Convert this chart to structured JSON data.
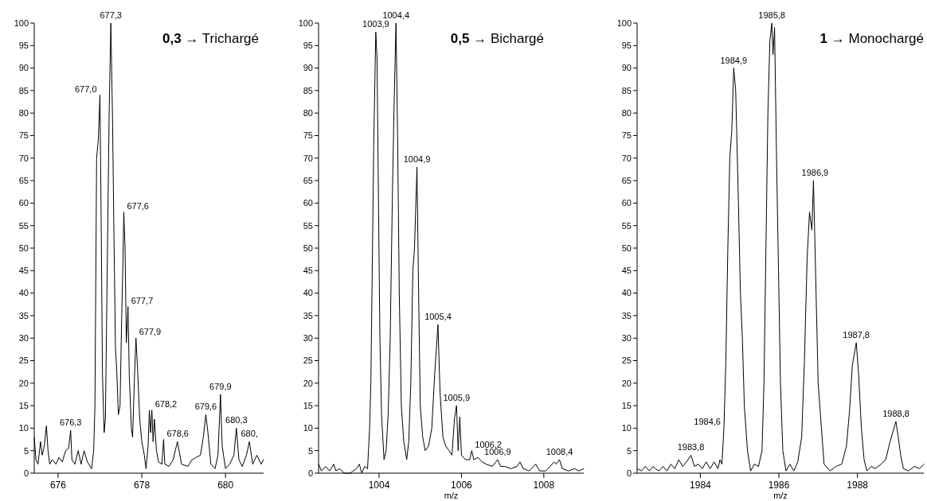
{
  "chart_data": [
    {
      "type": "line",
      "title": "0,3 → Trichargé",
      "color": "#000000",
      "x": [
        675.43,
        675.47,
        675.52,
        675.58,
        675.62,
        675.67,
        675.72,
        675.76,
        675.8,
        675.86,
        675.95,
        676.02,
        676.1,
        676.18,
        676.25,
        676.3,
        676.33,
        676.4,
        676.48,
        676.55,
        676.62,
        676.7,
        676.8,
        676.85,
        676.88,
        676.92,
        676.96,
        677.0,
        677.03,
        677.06,
        677.1,
        677.13,
        677.18,
        677.22,
        677.26,
        677.3,
        677.33,
        677.37,
        677.4,
        677.44,
        677.48,
        677.52,
        677.55,
        677.57,
        677.6,
        677.63,
        677.67,
        677.7,
        677.75,
        677.78,
        677.82,
        677.86,
        677.9,
        677.95,
        678.0,
        678.06,
        678.1,
        678.15,
        678.18,
        678.21,
        678.24,
        678.27,
        678.3,
        678.35,
        678.4,
        678.48,
        678.52,
        678.55,
        678.65,
        678.75,
        678.85,
        678.95,
        679.1,
        679.2,
        679.3,
        679.4,
        679.47,
        679.53,
        679.58,
        679.65,
        679.75,
        679.82,
        679.88,
        679.92,
        680.0,
        680.1,
        680.2,
        680.26,
        680.32,
        680.4,
        680.5,
        680.57,
        680.65,
        680.75,
        680.85,
        680.91
      ],
      "values": [
        8,
        3,
        2,
        7,
        4,
        6,
        10.5,
        5,
        2,
        3,
        2,
        3.5,
        2.5,
        5,
        5.5,
        9.5,
        3,
        2,
        5,
        2,
        5,
        2.5,
        1,
        5,
        15,
        70,
        74,
        84,
        55,
        22,
        9,
        12,
        50,
        80,
        100,
        79,
        56,
        28,
        23,
        13,
        15,
        35,
        47,
        58,
        50,
        29,
        37,
        22,
        10,
        8,
        20,
        30,
        23,
        12,
        7,
        4,
        1,
        6,
        14,
        9,
        14,
        7,
        12,
        5,
        2.5,
        2,
        7.5,
        2,
        1.5,
        3,
        7,
        2,
        1.5,
        3,
        3.5,
        4,
        8,
        13,
        9,
        2,
        1,
        4,
        17.5,
        6,
        1,
        2,
        4,
        10,
        3,
        1.5,
        4,
        7,
        2,
        4,
        2,
        3
      ],
      "xlim": [
        675.43,
        680.91
      ],
      "xticks": [
        676,
        678,
        680
      ],
      "ylim": [
        0,
        100
      ],
      "yticks": [
        0,
        5,
        10,
        15,
        20,
        25,
        30,
        35,
        40,
        45,
        50,
        55,
        60,
        65,
        70,
        75,
        80,
        85,
        90,
        95,
        100
      ],
      "annotations": [
        {
          "text": "676,3",
          "x": 676.3,
          "y": 9.5
        },
        {
          "text": "677,0",
          "x": 677.0,
          "y": 84
        },
        {
          "text": "677,3",
          "x": 677.26,
          "y": 100
        },
        {
          "text": "677,6",
          "x": 677.57,
          "y": 58
        },
        {
          "text": "677,7",
          "x": 677.67,
          "y": 37
        },
        {
          "text": "677,9",
          "x": 677.86,
          "y": 30
        },
        {
          "text": "678,2",
          "x": 678.24,
          "y": 14
        },
        {
          "text": "678,6",
          "x": 678.52,
          "y": 7.5
        },
        {
          "text": "679,6",
          "x": 679.53,
          "y": 13
        },
        {
          "text": "679,9",
          "x": 679.88,
          "y": 17.5
        },
        {
          "text": "680,3",
          "x": 680.26,
          "y": 10
        },
        {
          "text": "680,",
          "x": 680.57,
          "y": 7
        }
      ]
    },
    {
      "type": "line",
      "title": "0,5 → Bichargé",
      "xlabel": "m/z",
      "color": "#000000",
      "x": [
        1002.53,
        1002.6,
        1002.7,
        1002.8,
        1002.9,
        1002.95,
        1003.05,
        1003.15,
        1003.3,
        1003.45,
        1003.52,
        1003.58,
        1003.65,
        1003.72,
        1003.77,
        1003.8,
        1003.84,
        1003.87,
        1003.92,
        1003.95,
        1003.98,
        1004.02,
        1004.06,
        1004.12,
        1004.17,
        1004.22,
        1004.27,
        1004.32,
        1004.36,
        1004.41,
        1004.45,
        1004.49,
        1004.54,
        1004.6,
        1004.67,
        1004.72,
        1004.77,
        1004.82,
        1004.86,
        1004.92,
        1004.96,
        1005.0,
        1005.06,
        1005.12,
        1005.2,
        1005.28,
        1005.35,
        1005.43,
        1005.48,
        1005.55,
        1005.62,
        1005.7,
        1005.77,
        1005.83,
        1005.88,
        1005.92,
        1005.96,
        1006.0,
        1006.1,
        1006.2,
        1006.25,
        1006.3,
        1006.4,
        1006.5,
        1006.6,
        1006.75,
        1006.88,
        1006.95,
        1007.05,
        1007.2,
        1007.35,
        1007.42,
        1007.5,
        1007.65,
        1007.8,
        1007.9,
        1008.05,
        1008.25,
        1008.3,
        1008.38,
        1008.45,
        1008.6,
        1008.75,
        1008.85,
        1008.97
      ],
      "values": [
        2,
        0.5,
        1.5,
        0.5,
        2,
        0.5,
        1,
        0,
        0,
        1,
        2,
        0,
        1.5,
        1,
        10,
        20,
        50,
        73,
        98,
        92,
        65,
        30,
        13,
        3,
        5,
        13,
        30,
        60,
        80,
        100,
        75,
        40,
        15,
        7,
        3,
        7,
        20,
        45,
        50,
        68,
        40,
        15,
        8,
        5,
        6,
        10,
        22,
        33,
        18,
        8,
        6,
        5,
        4,
        12,
        15,
        5,
        12.5,
        4,
        3,
        3,
        5,
        3,
        3.5,
        2.5,
        2,
        1.5,
        3,
        1.5,
        1.5,
        1,
        1.5,
        2.5,
        1,
        0.5,
        2,
        0.5,
        0.5,
        2.5,
        2,
        3,
        1,
        0.5,
        1,
        0.5,
        1
      ],
      "xlim": [
        1002.53,
        1008.97
      ],
      "xticks": [
        1004,
        1006,
        1008
      ],
      "ylim": [
        0,
        100
      ],
      "yticks": [
        0,
        5,
        10,
        15,
        20,
        25,
        30,
        35,
        40,
        45,
        50,
        55,
        60,
        65,
        70,
        75,
        80,
        85,
        90,
        95,
        100
      ],
      "annotations": [
        {
          "text": "1003,9",
          "x": 1003.92,
          "y": 98
        },
        {
          "text": "1004,4",
          "x": 1004.41,
          "y": 100
        },
        {
          "text": "1004,9",
          "x": 1004.92,
          "y": 68
        },
        {
          "text": "1005,4",
          "x": 1005.43,
          "y": 33
        },
        {
          "text": "1005,9",
          "x": 1005.88,
          "y": 15
        },
        {
          "text": "1006,2",
          "x": 1006.25,
          "y": 5
        },
        {
          "text": "1006,9",
          "x": 1006.88,
          "y": 3
        },
        {
          "text": "1008,4",
          "x": 1008.38,
          "y": 3
        }
      ]
    },
    {
      "type": "line",
      "title": "1 → Monochargé",
      "xlabel": "m/z",
      "color": "#000000",
      "x": [
        1982.39,
        1982.5,
        1982.6,
        1982.7,
        1982.8,
        1982.85,
        1982.95,
        1983.05,
        1983.15,
        1983.25,
        1983.35,
        1983.45,
        1983.55,
        1983.65,
        1983.76,
        1983.85,
        1983.95,
        1984.05,
        1984.15,
        1984.25,
        1984.35,
        1984.45,
        1984.5,
        1984.55,
        1984.6,
        1984.65,
        1984.7,
        1984.75,
        1984.8,
        1984.85,
        1984.9,
        1984.97,
        1985.02,
        1985.07,
        1985.12,
        1985.2,
        1985.28,
        1985.38,
        1985.48,
        1985.57,
        1985.62,
        1985.67,
        1985.72,
        1985.77,
        1985.82,
        1985.85,
        1985.89,
        1985.94,
        1985.99,
        1986.04,
        1986.1,
        1986.18,
        1986.28,
        1986.38,
        1986.48,
        1986.58,
        1986.65,
        1986.72,
        1986.78,
        1986.84,
        1986.88,
        1986.92,
        1986.96,
        1987.0,
        1987.05,
        1987.15,
        1987.3,
        1987.45,
        1987.6,
        1987.72,
        1987.8,
        1987.87,
        1987.97,
        1988.03,
        1988.1,
        1988.17,
        1988.24,
        1988.35,
        1988.45,
        1988.6,
        1988.72,
        1988.83,
        1988.98,
        1989.04,
        1989.1,
        1989.17,
        1989.3,
        1989.45,
        1989.58,
        1989.69
      ],
      "values": [
        1,
        0.5,
        1.5,
        0.5,
        1.5,
        1,
        0.5,
        1.5,
        0.5,
        2,
        1,
        3,
        1.5,
        2.5,
        4,
        1.5,
        2,
        1,
        2.5,
        1,
        2.5,
        1,
        3,
        2,
        10,
        25,
        50,
        70,
        76,
        90,
        85,
        60,
        40,
        30,
        15,
        5,
        0.5,
        2,
        1.5,
        5,
        20,
        50,
        80,
        96,
        100,
        93,
        99,
        70,
        45,
        20,
        5,
        0.5,
        2,
        0.5,
        2.5,
        8,
        25,
        48,
        58,
        54,
        65,
        50,
        35,
        20,
        14,
        2,
        0.5,
        1.5,
        2,
        6,
        14,
        24,
        29,
        22,
        10,
        3,
        0.5,
        1.5,
        1,
        2,
        3,
        7,
        11.5,
        8,
        4,
        1,
        0.5,
        1.5,
        1,
        2
      ],
      "xlim": [
        1982.39,
        1989.69
      ],
      "xticks": [
        1984,
        1986,
        1988
      ],
      "ylim": [
        0,
        100
      ],
      "yticks": [
        0,
        5,
        10,
        15,
        20,
        25,
        30,
        35,
        40,
        45,
        50,
        55,
        60,
        65,
        70,
        75,
        80,
        85,
        90,
        95,
        100
      ],
      "annotations": [
        {
          "text": "1983,8",
          "x": 1983.76,
          "y": 4
        },
        {
          "text": "1984,6",
          "x": 1984.6,
          "y": 10
        },
        {
          "text": "1984,9",
          "x": 1984.85,
          "y": 90
        },
        {
          "text": "1985,8",
          "x": 1985.82,
          "y": 100
        },
        {
          "text": "1986,9",
          "x": 1986.92,
          "y": 65
        },
        {
          "text": "1987,8",
          "x": 1987.97,
          "y": 29
        },
        {
          "text": "1988,8",
          "x": 1988.98,
          "y": 11.5
        }
      ]
    }
  ]
}
